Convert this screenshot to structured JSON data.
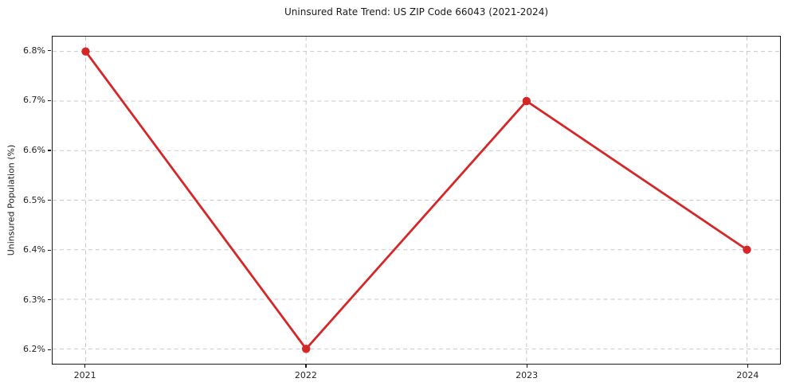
{
  "chart_data": {
    "type": "line",
    "title": "Uninsured Rate Trend: US ZIP Code 66043 (2021-2024)",
    "xlabel": "",
    "ylabel": "Uninsured Population (%)",
    "x": [
      2021,
      2022,
      2023,
      2024
    ],
    "values": [
      6.8,
      6.2,
      6.7,
      6.4
    ],
    "xticks": [
      2021,
      2022,
      2023,
      2024
    ],
    "xtick_labels": [
      "2021",
      "2022",
      "2023",
      "2024"
    ],
    "yticks": [
      6.2,
      6.3,
      6.4,
      6.5,
      6.6,
      6.7,
      6.8
    ],
    "ytick_labels": [
      "6.2%",
      "6.3%",
      "6.4%",
      "6.5%",
      "6.6%",
      "6.7%",
      "6.8%"
    ],
    "xlim": [
      2020.85,
      2024.15
    ],
    "ylim": [
      6.17,
      6.83
    ],
    "grid": true,
    "grid_style": "dashed",
    "legend": "none",
    "colors": {
      "line": "#d62728",
      "marker": "#d62728",
      "grid": "#c9c9c9",
      "spine": "#1a1a1a",
      "background": "#ffffff",
      "text": "#262626"
    }
  }
}
